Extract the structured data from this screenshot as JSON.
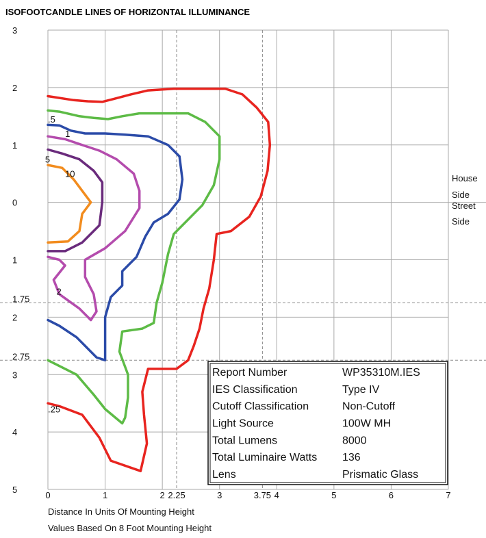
{
  "chart_data": {
    "type": "line",
    "title": "ISOFOOTCANDLE LINES OF HORIZONTAL ILLUMINANCE",
    "xlabel": "Distance In Units Of Mounting Height",
    "subtitle": "Values Based On 8 Foot Mounting Height",
    "xlim": [
      0,
      7
    ],
    "ylim": [
      -5,
      3
    ],
    "x_ticks": [
      {
        "v": 0,
        "label": "0"
      },
      {
        "v": 1,
        "label": "1"
      },
      {
        "v": 2,
        "label": "2"
      },
      {
        "v": 2.25,
        "label": "2.25"
      },
      {
        "v": 3,
        "label": "3"
      },
      {
        "v": 3.75,
        "label": "3.75"
      },
      {
        "v": 4,
        "label": "4"
      },
      {
        "v": 5,
        "label": "5"
      },
      {
        "v": 6,
        "label": "6"
      },
      {
        "v": 7,
        "label": "7"
      }
    ],
    "y_ticks": [
      {
        "v": 3,
        "label": "3"
      },
      {
        "v": 2,
        "label": "2"
      },
      {
        "v": 1,
        "label": "1"
      },
      {
        "v": 0,
        "label": "0"
      },
      {
        "v": -1,
        "label": "1"
      },
      {
        "v": -1.75,
        "label": "1.75"
      },
      {
        "v": -2,
        "label": "2"
      },
      {
        "v": -2.75,
        "label": "2.75"
      },
      {
        "v": -3,
        "label": "3"
      },
      {
        "v": -4,
        "label": "4"
      },
      {
        "v": -5,
        "label": "5"
      }
    ],
    "grid": true,
    "dashed_x": [
      2.25,
      3.75
    ],
    "dashed_y": [
      -1.75,
      -2.75
    ],
    "side_labels": {
      "upper": "House Side",
      "lower": "Street Side",
      "upper_lines": [
        "House",
        "Side"
      ],
      "lower_lines": [
        "Street",
        "Side"
      ]
    },
    "series": [
      {
        "name": ".25",
        "color": "#e8241f",
        "label_at": [
          0,
          -3.6
        ],
        "points": [
          [
            0,
            1.85
          ],
          [
            0.45,
            1.78
          ],
          [
            0.7,
            1.76
          ],
          [
            0.95,
            1.75
          ],
          [
            1.15,
            1.8
          ],
          [
            1.45,
            1.88
          ],
          [
            1.75,
            1.95
          ],
          [
            2.2,
            1.98
          ],
          [
            2.75,
            1.98
          ],
          [
            3.1,
            1.98
          ],
          [
            3.4,
            1.88
          ],
          [
            3.65,
            1.65
          ],
          [
            3.85,
            1.4
          ],
          [
            3.88,
            1.0
          ],
          [
            3.84,
            0.55
          ],
          [
            3.72,
            0.1
          ],
          [
            3.52,
            -0.25
          ],
          [
            3.2,
            -0.5
          ],
          [
            2.95,
            -0.55
          ],
          [
            2.9,
            -1.0
          ],
          [
            2.82,
            -1.5
          ],
          [
            2.72,
            -1.85
          ],
          [
            2.65,
            -2.2
          ],
          [
            2.55,
            -2.5
          ],
          [
            2.45,
            -2.75
          ],
          [
            2.25,
            -2.9
          ],
          [
            1.75,
            -2.9
          ],
          [
            1.65,
            -3.3
          ],
          [
            1.68,
            -3.7
          ],
          [
            1.73,
            -4.2
          ],
          [
            1.62,
            -4.68
          ],
          [
            1.1,
            -4.5
          ],
          [
            0.9,
            -4.1
          ],
          [
            0.6,
            -3.7
          ],
          [
            0.2,
            -3.55
          ],
          [
            0,
            -3.5
          ]
        ]
      },
      {
        "name": ".5",
        "color": "#5dbb46",
        "label_at": [
          0,
          1.45
        ],
        "points": [
          [
            0,
            1.6
          ],
          [
            0.2,
            1.58
          ],
          [
            0.55,
            1.5
          ],
          [
            0.8,
            1.47
          ],
          [
            1.05,
            1.45
          ],
          [
            1.3,
            1.5
          ],
          [
            1.6,
            1.55
          ],
          [
            2.2,
            1.55
          ],
          [
            2.45,
            1.55
          ],
          [
            2.75,
            1.4
          ],
          [
            3.0,
            1.15
          ],
          [
            3.0,
            0.75
          ],
          [
            2.9,
            0.3
          ],
          [
            2.7,
            -0.05
          ],
          [
            2.4,
            -0.35
          ],
          [
            2.2,
            -0.55
          ],
          [
            2.1,
            -0.9
          ],
          [
            2.0,
            -1.4
          ],
          [
            1.9,
            -1.75
          ],
          [
            1.85,
            -2.1
          ],
          [
            1.65,
            -2.2
          ],
          [
            1.3,
            -2.25
          ],
          [
            1.25,
            -2.6
          ],
          [
            1.4,
            -3.0
          ],
          [
            1.4,
            -3.4
          ],
          [
            1.35,
            -3.75
          ],
          [
            1.3,
            -3.85
          ],
          [
            1.0,
            -3.6
          ],
          [
            0.8,
            -3.35
          ],
          [
            0.5,
            -3.0
          ],
          [
            0.2,
            -2.85
          ],
          [
            0,
            -2.75
          ]
        ]
      },
      {
        "name": "1",
        "color": "#2b4ba8",
        "label_at": [
          0.3,
          1.2
        ],
        "points": [
          [
            0,
            1.35
          ],
          [
            0.2,
            1.34
          ],
          [
            0.4,
            1.25
          ],
          [
            0.65,
            1.2
          ],
          [
            1.0,
            1.2
          ],
          [
            1.35,
            1.18
          ],
          [
            1.75,
            1.15
          ],
          [
            2.1,
            1.0
          ],
          [
            2.3,
            0.8
          ],
          [
            2.35,
            0.4
          ],
          [
            2.3,
            0.05
          ],
          [
            2.1,
            -0.2
          ],
          [
            1.85,
            -0.35
          ],
          [
            1.7,
            -0.6
          ],
          [
            1.55,
            -0.95
          ],
          [
            1.3,
            -1.2
          ],
          [
            1.3,
            -1.45
          ],
          [
            1.1,
            -1.65
          ],
          [
            1.0,
            -2.0
          ],
          [
            1.0,
            -2.4
          ],
          [
            1.0,
            -2.75
          ],
          [
            0.85,
            -2.7
          ],
          [
            0.5,
            -2.35
          ],
          [
            0.2,
            -2.15
          ],
          [
            0,
            -2.05
          ]
        ]
      },
      {
        "name": "2",
        "color": "#b44cad",
        "label_at": [
          0.15,
          -1.55
        ],
        "points": [
          [
            0,
            1.15
          ],
          [
            0.3,
            1.1
          ],
          [
            0.6,
            1.0
          ],
          [
            0.9,
            0.9
          ],
          [
            1.2,
            0.75
          ],
          [
            1.5,
            0.5
          ],
          [
            1.6,
            0.2
          ],
          [
            1.6,
            -0.1
          ],
          [
            1.35,
            -0.5
          ],
          [
            1.0,
            -0.8
          ],
          [
            0.65,
            -1.0
          ],
          [
            0.65,
            -1.3
          ],
          [
            0.8,
            -1.6
          ],
          [
            0.85,
            -1.9
          ],
          [
            0.75,
            -2.05
          ],
          [
            0.55,
            -1.85
          ],
          [
            0.2,
            -1.6
          ],
          [
            0.1,
            -1.35
          ],
          [
            0.3,
            -1.1
          ],
          [
            0.2,
            -1.0
          ],
          [
            0,
            -0.95
          ]
        ]
      },
      {
        "name": "5",
        "color": "#6a2b7c",
        "label_at": [
          -0.05,
          0.75
        ],
        "points": [
          [
            0,
            0.92
          ],
          [
            0.25,
            0.85
          ],
          [
            0.55,
            0.75
          ],
          [
            0.8,
            0.55
          ],
          [
            0.95,
            0.35
          ],
          [
            0.95,
            0.0
          ],
          [
            0.9,
            -0.4
          ],
          [
            0.6,
            -0.7
          ],
          [
            0.3,
            -0.85
          ],
          [
            0,
            -0.85
          ]
        ]
      },
      {
        "name": "10",
        "color": "#f28c1e",
        "label_at": [
          0.3,
          0.5
        ],
        "points": [
          [
            0,
            0.65
          ],
          [
            0.25,
            0.6
          ],
          [
            0.45,
            0.4
          ],
          [
            0.6,
            0.2
          ],
          [
            0.75,
            0.0
          ],
          [
            0.6,
            -0.2
          ],
          [
            0.55,
            -0.5
          ],
          [
            0.35,
            -0.68
          ],
          [
            0,
            -0.7
          ]
        ]
      }
    ]
  },
  "info_table": {
    "rows": [
      {
        "label": "Report Number",
        "value": "WP35310M.IES"
      },
      {
        "label": "IES Classification",
        "value": "Type IV"
      },
      {
        "label": "Cutoff Classification",
        "value": "Non-Cutoff"
      },
      {
        "label": "Light Source",
        "value": "100W MH"
      },
      {
        "label": "Total Lumens",
        "value": "8000"
      },
      {
        "label": "Total Luminaire Watts",
        "value": "136"
      },
      {
        "label": "Lens",
        "value": "Prismatic Glass"
      }
    ]
  }
}
